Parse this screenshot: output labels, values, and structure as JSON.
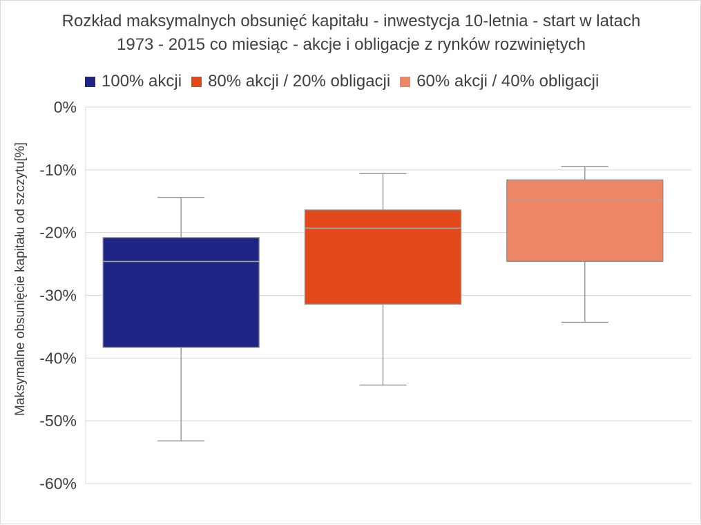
{
  "chart_data": {
    "type": "box",
    "title": "Rozkład maksymalnych obsunięć kapitału - inwestycja 10-letnia - start w latach 1973 - 2015 co miesiąc - akcje i obligacje z rynków rozwiniętych",
    "title_lines": [
      "Rozkład maksymalnych obsunięć kapitału - inwestycja 10-letnia - start w latach",
      "1973 - 2015 co miesiąc - akcje i obligacje z rynków rozwiniętych"
    ],
    "ylabel": "Maksymalne obsunięcie kapitału od szczytu[%]",
    "xlabel": "",
    "ylim": [
      -60,
      0
    ],
    "yticks": [
      0,
      -10,
      -20,
      -30,
      -40,
      -50,
      -60
    ],
    "ytick_labels": [
      "0%",
      "-10%",
      "-20%",
      "-30%",
      "-40%",
      "-50%",
      "-60%"
    ],
    "grid": true,
    "legend_position": "top",
    "series": [
      {
        "name": "100% akcji",
        "color": "#1f2585",
        "min": -53.2,
        "q1": -38.3,
        "median": -24.6,
        "q3": -20.8,
        "max": -14.4
      },
      {
        "name": "80% akcji / 20% obligacji",
        "color": "#e3481b",
        "min": -44.3,
        "q1": -31.4,
        "median": -19.3,
        "q3": -16.4,
        "max": -10.6
      },
      {
        "name": "60% akcji / 40% obligacji",
        "color": "#ee8565",
        "min": -34.3,
        "q1": -24.6,
        "median": -14.8,
        "q3": -11.6,
        "max": -9.5
      }
    ]
  }
}
